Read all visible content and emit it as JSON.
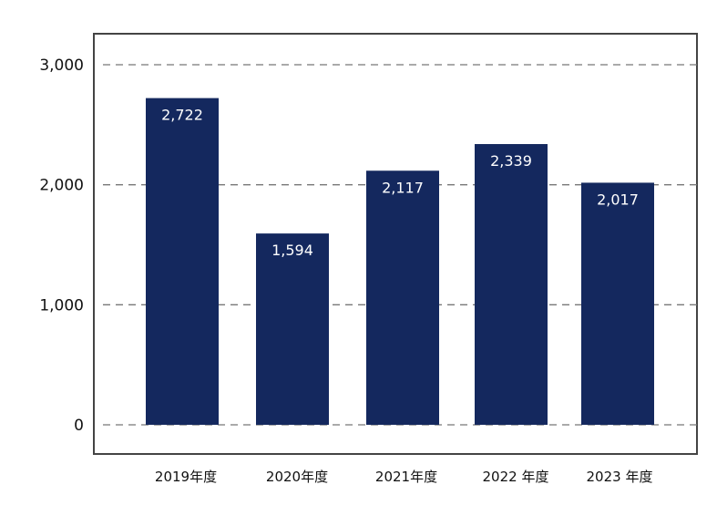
{
  "chart_data": {
    "type": "bar",
    "categories": [
      "2019年度",
      "2020年度",
      "2021年度",
      "2022 年度",
      "2023 年度"
    ],
    "values": [
      2722,
      1594,
      2117,
      2339,
      2017
    ],
    "data_labels": [
      "2,722",
      "1,594",
      "2,117",
      "2,339",
      "2,017"
    ],
    "ylim": [
      0,
      3000
    ],
    "yticks": [
      0,
      1000,
      2000,
      3000
    ],
    "ytick_labels": [
      "0",
      "1,000",
      "2,000",
      "3,000"
    ],
    "grid": true,
    "grid_style": "dashed",
    "legend": "none"
  },
  "colors": {
    "bar": "#14285e",
    "grid": "#777777",
    "frame": "#444444",
    "data_label": "#ffffff"
  }
}
